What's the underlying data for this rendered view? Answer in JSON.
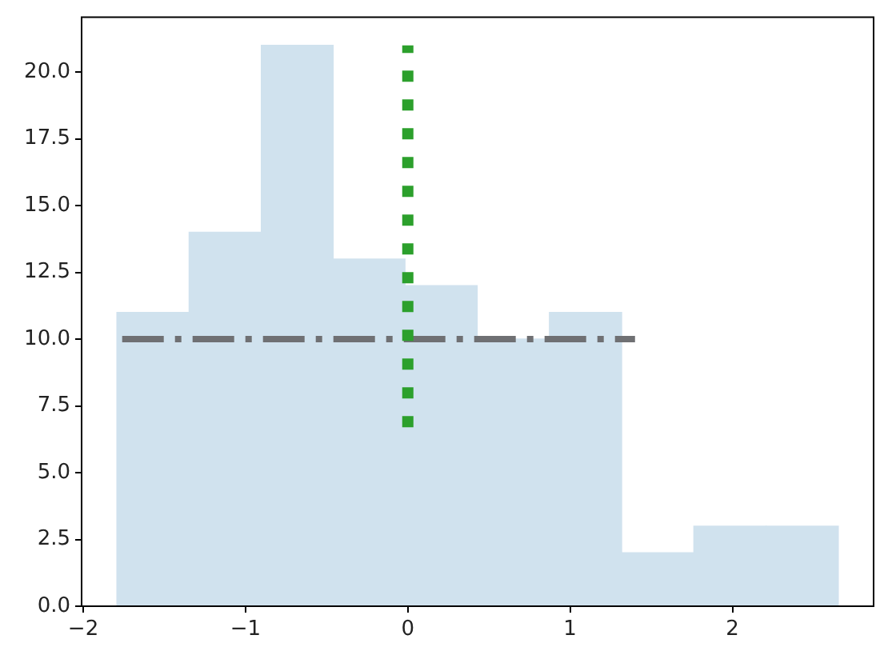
{
  "chart_data": {
    "type": "histogram",
    "series": [
      {
        "color": "#d0e2ee",
        "bins": [
          -1.79,
          -1.35,
          -0.9,
          -0.46,
          -0.02,
          0.43,
          0.87,
          1.32,
          1.76,
          2.21,
          2.65
        ],
        "values": [
          11,
          14,
          21,
          13,
          12,
          10,
          11,
          2,
          3,
          3
        ]
      },
      {
        "type": "line",
        "color": "#6f7073",
        "line_style": "dashed",
        "x": [
          -1.76,
          1.4
        ],
        "values": [
          10,
          10
        ]
      },
      {
        "type": "line",
        "color": "#2ca02c",
        "line_style": "dotted",
        "x": [
          0,
          0
        ],
        "values": [
          6.7,
          21
        ]
      }
    ],
    "xlim": [
      -2.01,
      2.87
    ],
    "xticks": [
      {
        "value": -2,
        "label": "−2"
      },
      {
        "value": -1,
        "label": "−1"
      },
      0,
      1,
      2
    ],
    "ylim": [
      0,
      22.05
    ],
    "yticks": [
      {
        "value": 0,
        "label": "0.0"
      },
      2.5,
      {
        "value": 5,
        "label": "5.0"
      },
      7.5,
      {
        "value": 10,
        "label": "10.0"
      },
      12.5,
      {
        "value": 15,
        "label": "15.0"
      },
      17.5,
      {
        "value": 20,
        "label": "20.0"
      }
    ]
  }
}
